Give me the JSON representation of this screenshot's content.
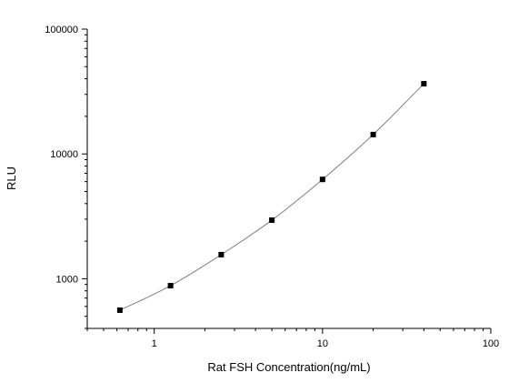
{
  "chart_data": {
    "type": "scatter",
    "title": "",
    "xlabel": "Rat FSH Concentration(ng/mL)",
    "ylabel": "RLU",
    "x_scale": "log",
    "y_scale": "log",
    "xlim": [
      0.4,
      100
    ],
    "ylim": [
      400,
      100000
    ],
    "grid": false,
    "legend": "none",
    "x_ticks": [
      {
        "value": 1,
        "label": "1"
      },
      {
        "value": 10,
        "label": "10"
      },
      {
        "value": 100,
        "label": "100"
      }
    ],
    "y_ticks": [
      {
        "value": 1000,
        "label": "1000"
      },
      {
        "value": 10000,
        "label": "10000"
      },
      {
        "value": 100000,
        "label": "100000"
      }
    ],
    "points": [
      {
        "x": 0.625,
        "y": 560
      },
      {
        "x": 1.25,
        "y": 880
      },
      {
        "x": 2.5,
        "y": 1560
      },
      {
        "x": 5,
        "y": 2950
      },
      {
        "x": 10,
        "y": 6250
      },
      {
        "x": 20,
        "y": 14300
      },
      {
        "x": 40,
        "y": 36500
      }
    ],
    "fit_curve": "smooth line through points",
    "marker": "square",
    "marker_color": "#000000",
    "line_color": "#7f7f7f"
  }
}
